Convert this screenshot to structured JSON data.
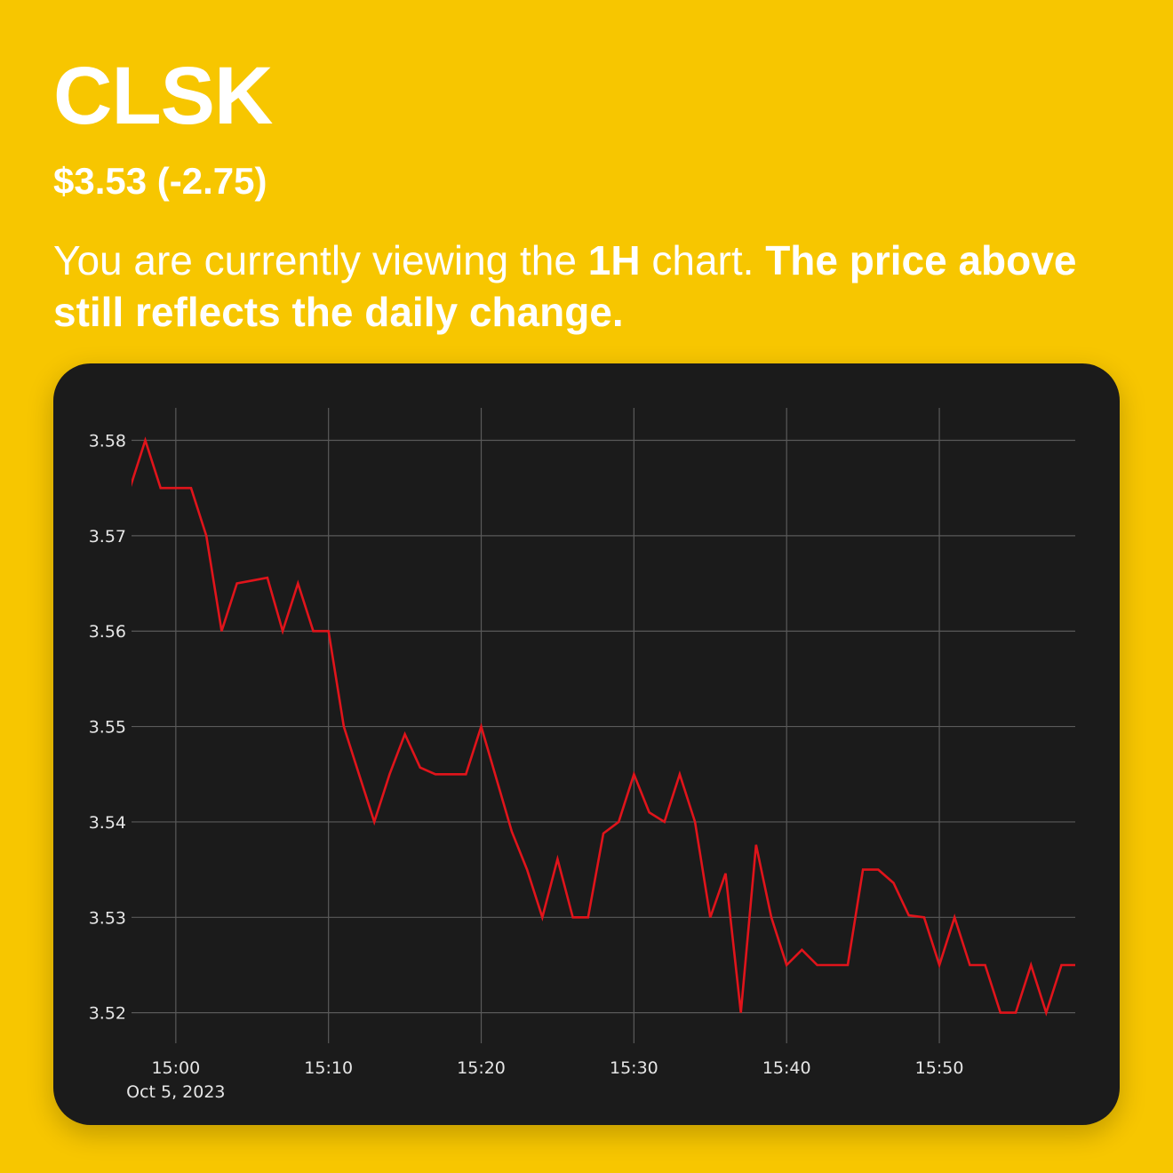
{
  "header": {
    "ticker": "CLSK",
    "price_change": "$3.53 (-2.75)",
    "info_1": "You are currently viewing the ",
    "info_2": "1H",
    "info_3": " chart. ",
    "info_4": "The price above still reflects the daily change."
  },
  "colors": {
    "background": "#F7C600",
    "card": "#1b1b1b",
    "line": "#e0141b",
    "grid": "#5a5a5a"
  },
  "chart_data": {
    "type": "line",
    "title": "",
    "xlabel": "",
    "ylabel": "",
    "ylim": [
      3.5168,
      3.5834
    ],
    "y_ticks": [
      3.52,
      3.53,
      3.54,
      3.55,
      3.56,
      3.57,
      3.58
    ],
    "y_tick_labels": [
      "3.52",
      "3.53",
      "3.54",
      "3.55",
      "3.56",
      "3.57",
      "3.58"
    ],
    "x_ticks": [
      0,
      10,
      20,
      30,
      40,
      50
    ],
    "x_tick_labels": [
      "15:00",
      "15:10",
      "15:20",
      "15:30",
      "15:40",
      "15:50"
    ],
    "x_date_label": "Oct 5, 2023",
    "xlim": [
      -2.9,
      58.9
    ],
    "grid": true,
    "legend": "none",
    "series": [
      {
        "x": [
          -3,
          -2,
          -1,
          0,
          1,
          2,
          3,
          4,
          5,
          6,
          7,
          8,
          9,
          10,
          11,
          12,
          13,
          14,
          15,
          16,
          17,
          18,
          19,
          20,
          21,
          22,
          23,
          24,
          25,
          26,
          27,
          28,
          29,
          30,
          31,
          32,
          33,
          34,
          35,
          36,
          37,
          38,
          39,
          40,
          41,
          42,
          43,
          44,
          45,
          46,
          47,
          48,
          49,
          50,
          51,
          52,
          53,
          54,
          55,
          56,
          57,
          58,
          59
        ],
        "values": [
          3.575,
          3.58,
          3.575,
          3.575,
          3.575,
          3.57,
          3.56,
          3.565,
          3.5653,
          3.5656,
          3.56,
          3.565,
          3.56,
          3.56,
          3.55,
          3.545,
          3.54,
          3.545,
          3.5492,
          3.5457,
          3.545,
          3.545,
          3.545,
          3.55,
          3.5445,
          3.539,
          3.535,
          3.53,
          3.5361,
          3.53,
          3.53,
          3.5388,
          3.54,
          3.545,
          3.541,
          3.54,
          3.545,
          3.54,
          3.53,
          3.5346,
          3.52,
          3.5376,
          3.53,
          3.525,
          3.5266,
          3.525,
          3.525,
          3.525,
          3.535,
          3.535,
          3.5336,
          3.5302,
          3.53,
          3.525,
          3.53,
          3.525,
          3.525,
          3.52,
          3.52,
          3.525,
          3.52,
          3.525,
          3.525
        ]
      }
    ]
  }
}
